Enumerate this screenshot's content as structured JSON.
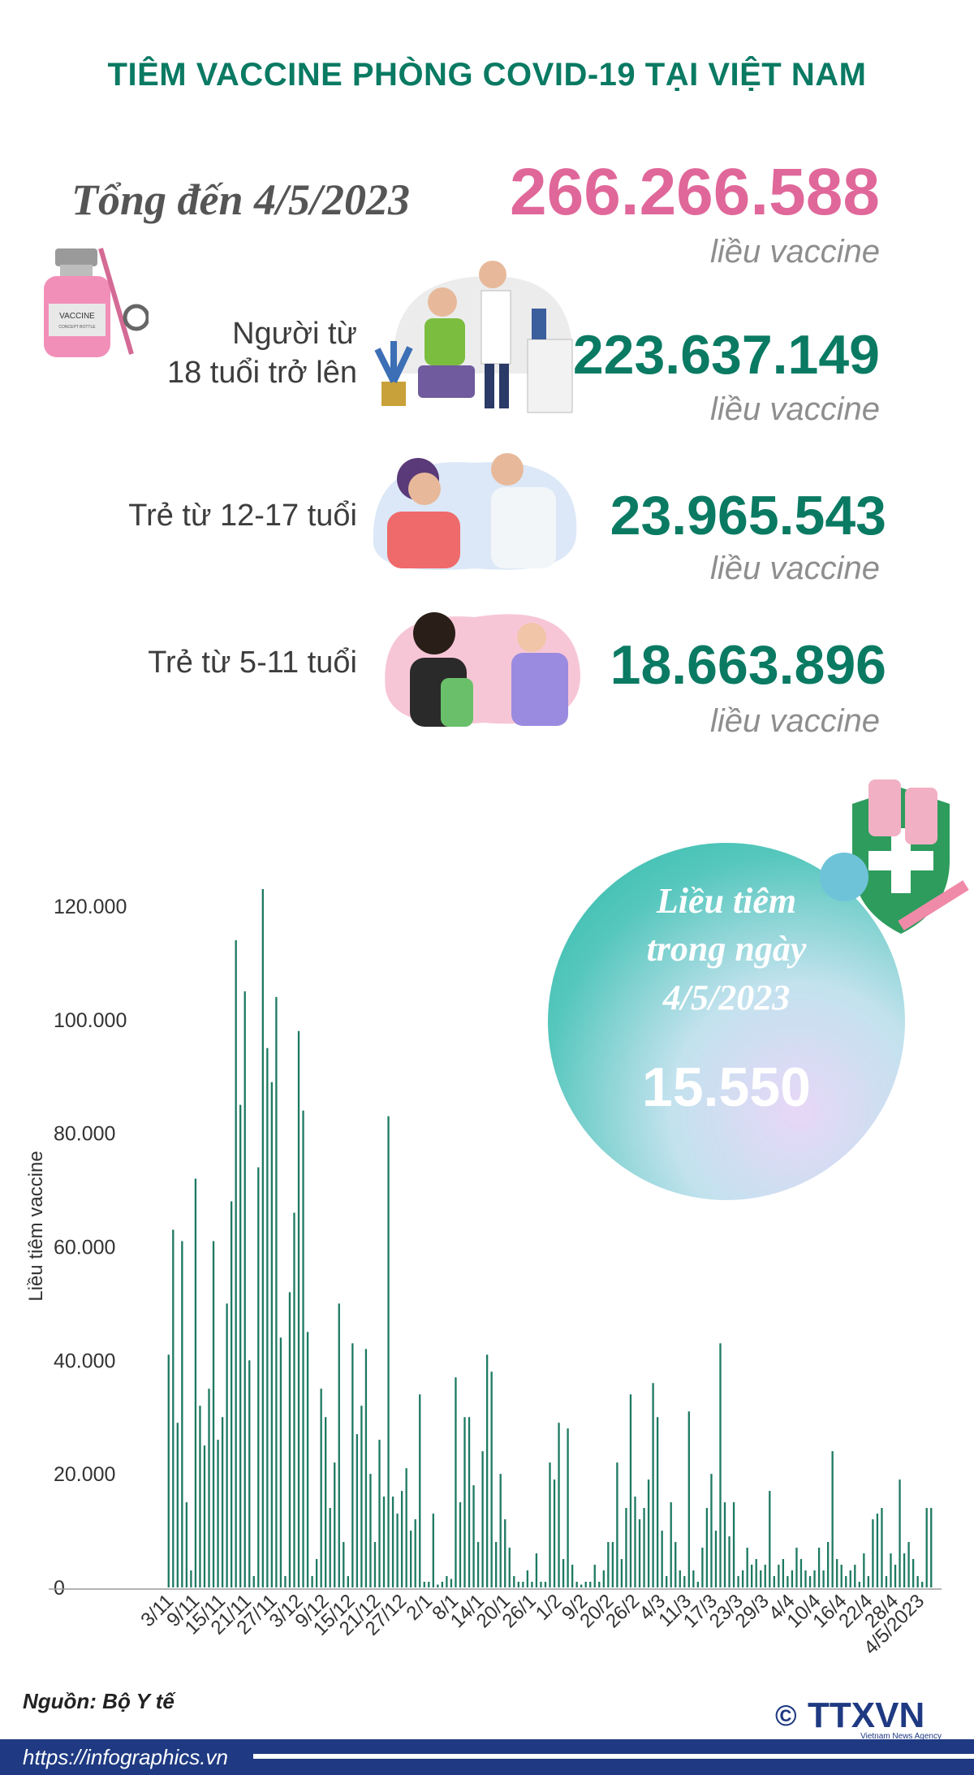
{
  "title": "TIÊM VACCINE PHÒNG COVID-19 TẠI VIỆT NAM",
  "total": {
    "label": "Tổng đến 4/5/2023",
    "value": "266.266.588",
    "unit": "liều vaccine"
  },
  "groups": [
    {
      "label_line1": "Người từ",
      "label_line2": "18 tuổi trở lên",
      "value": "223.637.149",
      "unit": "liều vaccine"
    },
    {
      "label_line1": "Trẻ từ 12-17 tuổi",
      "label_line2": "",
      "value": "23.965.543",
      "unit": "liều vaccine"
    },
    {
      "label_line1": "Trẻ từ 5-11 tuổi",
      "label_line2": "",
      "value": "18.663.896",
      "unit": "liều vaccine"
    }
  ],
  "daily": {
    "line1": "Liều tiêm",
    "line2": "trong ngày",
    "line3": "4/5/2023",
    "value": "15.550"
  },
  "vial_label": {
    "name": "VACCINE",
    "sub": "CONCEPT BOTTLE"
  },
  "colors": {
    "title": "#0a7a63",
    "total": "#e0679a",
    "bar": "#1e7a62",
    "footer": "#1f3a82"
  },
  "chart_data": {
    "type": "bar",
    "ylabel": "Liều tiêm vaccine",
    "ylim": [
      0,
      128000
    ],
    "yticks": [
      0,
      20000,
      40000,
      60000,
      80000,
      100000,
      120000
    ],
    "ytick_labels": [
      "0",
      "20.000",
      "40.000",
      "60.000",
      "80.000",
      "100.000",
      "120.000"
    ],
    "xtick_labels": [
      "3/11",
      "9/11",
      "15/11",
      "21/11",
      "27/11",
      "3/12",
      "9/12",
      "15/12",
      "21/12",
      "27/12",
      "2/1",
      "8/1",
      "14/1",
      "20/1",
      "26/1",
      "1/2",
      "9/2",
      "20/2",
      "26/2",
      "4/3",
      "11/3",
      "17/3",
      "23/3",
      "29/3",
      "4/4",
      "10/4",
      "16/4",
      "22/4",
      "28/4",
      "4/5/2023"
    ],
    "values": [
      41000,
      63000,
      29000,
      61000,
      15000,
      3000,
      72000,
      32000,
      25000,
      35000,
      61000,
      26000,
      30000,
      50000,
      68000,
      114000,
      85000,
      105000,
      40000,
      2000,
      74000,
      123000,
      95000,
      89000,
      104000,
      44000,
      2000,
      52000,
      66000,
      98000,
      84000,
      45000,
      2000,
      5000,
      35000,
      30000,
      14000,
      22000,
      50000,
      8000,
      2000,
      43000,
      27000,
      32000,
      42000,
      20000,
      8000,
      26000,
      16000,
      83000,
      16000,
      13000,
      17000,
      21000,
      10000,
      12000,
      34000,
      1000,
      1000,
      13000,
      500,
      1000,
      2000,
      1500,
      37000,
      15000,
      30000,
      30000,
      18000,
      8000,
      24000,
      41000,
      38000,
      8000,
      20000,
      12000,
      7000,
      2000,
      1000,
      1000,
      3000,
      1000,
      6000,
      1000,
      1000,
      22000,
      19000,
      29000,
      5000,
      28000,
      4000,
      1000,
      500,
      1000,
      1000,
      4000,
      1000,
      3000,
      8000,
      8000,
      22000,
      5000,
      14000,
      34000,
      16000,
      12000,
      14000,
      19000,
      36000,
      30000,
      10000,
      2000,
      15000,
      8000,
      3000,
      2000,
      31000,
      3000,
      1000,
      7000,
      14000,
      20000,
      10000,
      43000,
      15000,
      9000,
      15000,
      2000,
      3000,
      7000,
      4000,
      5000,
      3000,
      4000,
      17000,
      2000,
      4000,
      5000,
      2000,
      3000,
      7000,
      5000,
      3000,
      2000,
      3000,
      7000,
      3000,
      8000,
      24000,
      5000,
      4000,
      2000,
      3000,
      4000,
      1000,
      6000,
      2000,
      12000,
      13000,
      14000,
      2000,
      6000,
      4000,
      19000,
      6000,
      8000,
      5000,
      2000,
      1000,
      14000,
      14000
    ]
  },
  "source": "Nguồn: Bộ Y tế",
  "footer_url": "https://infographics.vn",
  "logo": {
    "text": "TTXVN",
    "copyright": "©",
    "agency": "Vietnam News Agency"
  }
}
